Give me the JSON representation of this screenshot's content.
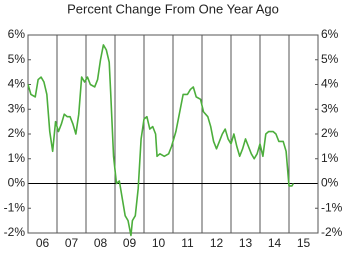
{
  "chart_data": {
    "type": "line",
    "title": "Percent Change From One Year Ago",
    "color": "#4cae3c",
    "x": [
      2006.0,
      2006.1,
      2006.25,
      2006.35,
      2006.45,
      2006.55,
      2006.65,
      2006.75,
      2006.85,
      2006.95,
      2007.05,
      2007.15,
      2007.25,
      2007.35,
      2007.45,
      2007.55,
      2007.65,
      2007.75,
      2007.85,
      2007.95,
      2008.05,
      2008.15,
      2008.3,
      2008.4,
      2008.5,
      2008.6,
      2008.7,
      2008.8,
      2008.85,
      2008.95,
      2009.05,
      2009.15,
      2009.25,
      2009.35,
      2009.45,
      2009.55,
      2009.6,
      2009.7,
      2009.8,
      2009.9,
      2010.0,
      2010.1,
      2010.2,
      2010.3,
      2010.4,
      2010.45,
      2010.55,
      2010.7,
      2010.85,
      2010.95,
      2011.1,
      2011.2,
      2011.35,
      2011.5,
      2011.6,
      2011.7,
      2011.8,
      2011.95,
      2012.05,
      2012.2,
      2012.3,
      2012.4,
      2012.5,
      2012.6,
      2012.7,
      2012.8,
      2012.9,
      2013.0,
      2013.1,
      2013.2,
      2013.3,
      2013.4,
      2013.5,
      2013.6,
      2013.7,
      2013.8,
      2013.9,
      2014.0,
      2014.1,
      2014.2,
      2014.3,
      2014.45,
      2014.55,
      2014.65,
      2014.8,
      2014.9,
      2015.0,
      2015.1,
      2015.15
    ],
    "values": [
      4.0,
      3.6,
      3.5,
      4.2,
      4.3,
      4.1,
      3.6,
      2.1,
      1.3,
      2.5,
      2.1,
      2.4,
      2.8,
      2.7,
      2.7,
      2.4,
      2.0,
      2.8,
      4.3,
      4.1,
      4.3,
      4.0,
      3.9,
      4.2,
      5.0,
      5.6,
      5.4,
      4.9,
      3.7,
      1.1,
      0.0,
      0.1,
      -0.6,
      -1.3,
      -1.5,
      -2.1,
      -1.5,
      -1.3,
      -0.2,
      1.8,
      2.6,
      2.7,
      2.2,
      2.3,
      2.0,
      1.1,
      1.2,
      1.1,
      1.2,
      1.5,
      2.1,
      2.7,
      3.6,
      3.6,
      3.8,
      3.9,
      3.5,
      3.4,
      2.9,
      2.7,
      2.3,
      1.7,
      1.4,
      1.7,
      2.0,
      2.2,
      1.8,
      1.6,
      2.0,
      1.5,
      1.1,
      1.4,
      1.8,
      1.5,
      1.2,
      1.0,
      1.2,
      1.6,
      1.1,
      2.0,
      2.1,
      2.1,
      2.0,
      1.7,
      1.7,
      1.3,
      -0.1,
      -0.1,
      0.0
    ],
    "xlim": [
      2006,
      2016
    ],
    "xticks": [
      {
        "value": 2006,
        "label": "06"
      },
      {
        "value": 2007,
        "label": "07"
      },
      {
        "value": 2008,
        "label": "08"
      },
      {
        "value": 2009,
        "label": "09"
      },
      {
        "value": 2010,
        "label": "10"
      },
      {
        "value": 2011,
        "label": "11"
      },
      {
        "value": 2012,
        "label": "12"
      },
      {
        "value": 2013,
        "label": "13"
      },
      {
        "value": 2014,
        "label": "14"
      },
      {
        "value": 2015,
        "label": "15"
      }
    ],
    "ylim": [
      -2,
      6
    ],
    "yticks": [
      {
        "value": -2,
        "label": "-2%"
      },
      {
        "value": -1,
        "label": "-1%"
      },
      {
        "value": 0,
        "label": "0%"
      },
      {
        "value": 1,
        "label": "1%"
      },
      {
        "value": 2,
        "label": "2%"
      },
      {
        "value": 3,
        "label": "3%"
      },
      {
        "value": 4,
        "label": "4%"
      },
      {
        "value": 5,
        "label": "5%"
      },
      {
        "value": 6,
        "label": "6%"
      }
    ],
    "y2lim": [
      -2,
      6
    ],
    "y2ticks": [
      {
        "value": -2,
        "label": "-2%"
      },
      {
        "value": -1,
        "label": "-1%"
      },
      {
        "value": 0,
        "label": "0%"
      },
      {
        "value": 1,
        "label": "1%"
      },
      {
        "value": 2,
        "label": "2%"
      },
      {
        "value": 3,
        "label": "3%"
      },
      {
        "value": 4,
        "label": "4%"
      },
      {
        "value": 5,
        "label": "5%"
      },
      {
        "value": 6,
        "label": "6%"
      }
    ],
    "grid": true
  }
}
